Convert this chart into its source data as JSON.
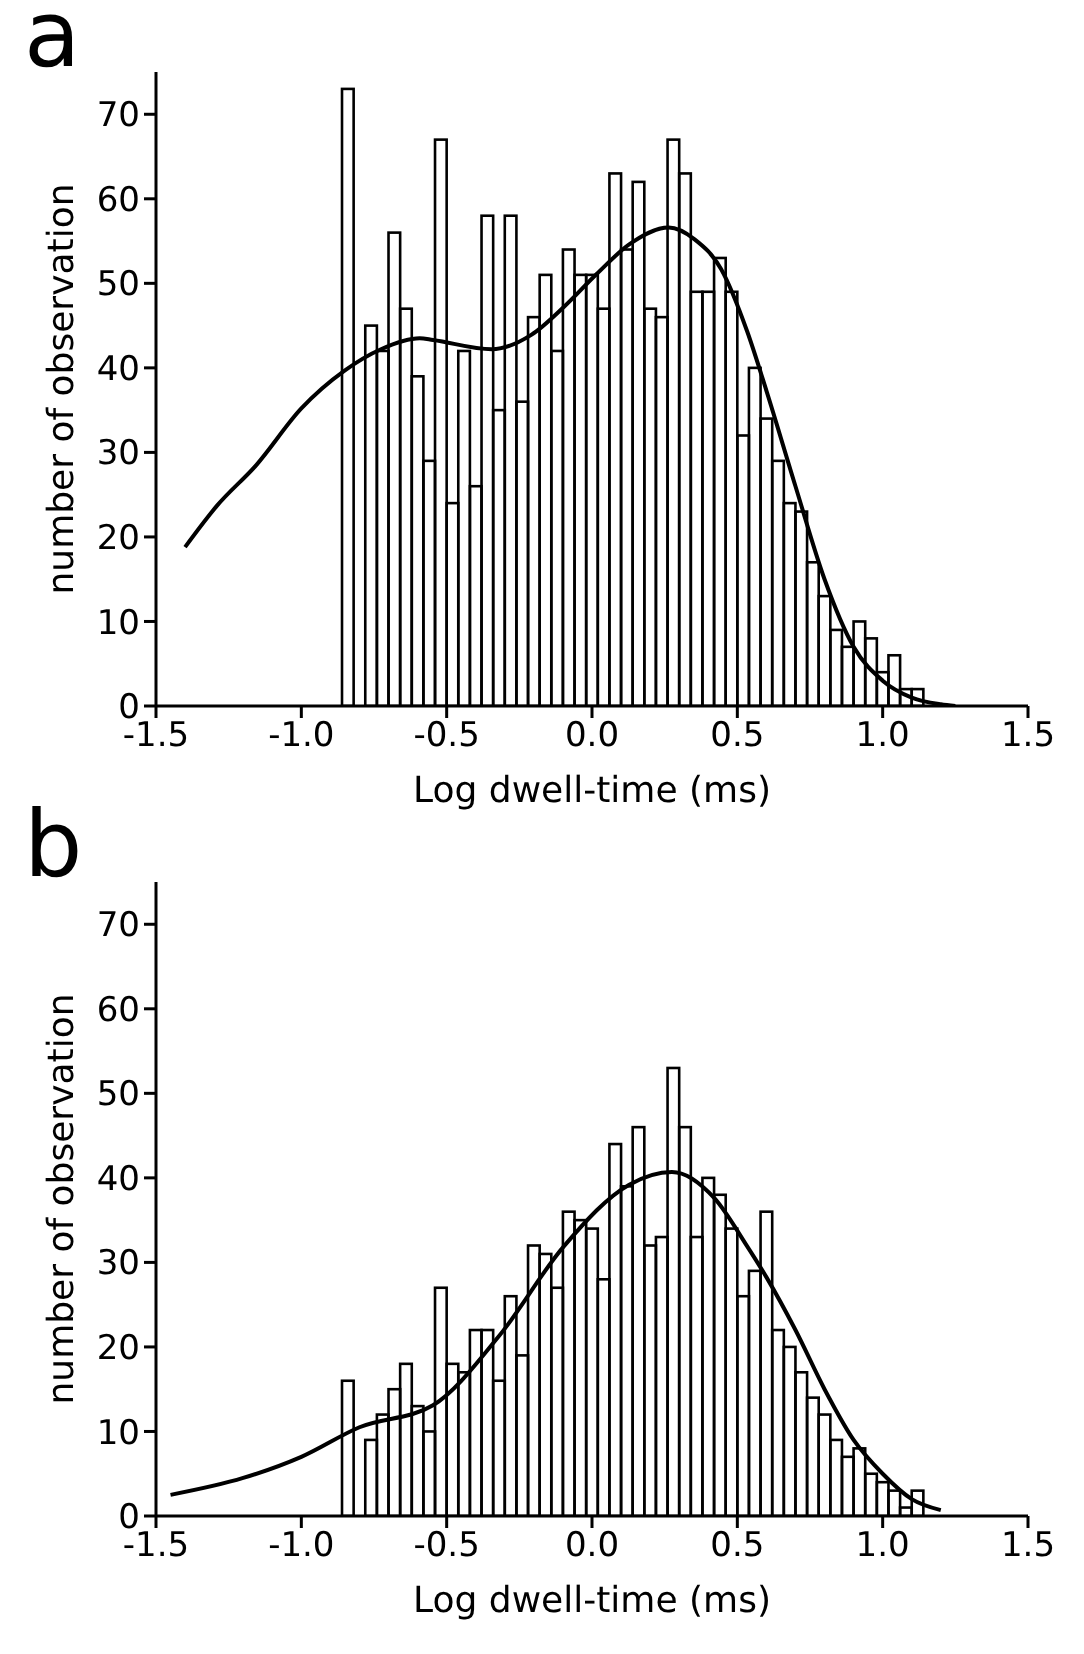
{
  "chart_data": [
    {
      "type": "histogram",
      "annotations": [
        "a"
      ],
      "xlabel": "Log dwell-time (ms)",
      "ylabel": "number of observation",
      "xlim": [
        -1.5,
        1.5
      ],
      "ylim": [
        0,
        75
      ],
      "xticks": [
        -1.5,
        {
          "value": -1,
          "label": "-1.0"
        },
        -0.5,
        {
          "value": 0,
          "label": "0.0"
        },
        0.5,
        {
          "value": 1,
          "label": "1.0"
        },
        1.5
      ],
      "yticks": [
        0,
        10,
        20,
        30,
        40,
        50,
        60,
        70
      ],
      "bins": [
        -0.86,
        -0.82,
        -0.78,
        -0.74,
        -0.7,
        -0.66,
        -0.62,
        -0.58,
        -0.54,
        -0.5,
        -0.46,
        -0.42,
        -0.38,
        -0.34,
        -0.3,
        -0.26,
        -0.22,
        -0.18,
        -0.14,
        -0.1,
        -0.06,
        -0.02,
        0.02,
        0.06,
        0.1,
        0.14,
        0.18,
        0.22,
        0.26,
        0.3,
        0.34,
        0.38,
        0.42,
        0.46,
        0.5,
        0.54,
        0.58,
        0.62,
        0.66,
        0.7,
        0.74,
        0.78,
        0.82,
        0.86,
        0.9,
        0.94,
        0.98,
        1.02,
        1.06,
        1.1,
        1.14
      ],
      "series": [
        {
          "color": "#000000",
          "values": [
            73,
            0,
            45,
            42,
            56,
            47,
            39,
            29,
            67,
            24,
            42,
            26,
            58,
            35,
            58,
            36,
            46,
            51,
            42,
            54,
            51,
            51,
            47,
            63,
            54,
            62,
            47,
            46,
            67,
            63,
            49,
            49,
            53,
            49,
            32,
            40,
            34,
            29,
            24,
            23,
            17,
            13,
            9,
            7,
            10,
            8,
            4,
            6,
            2,
            2
          ]
        },
        {
          "type": "line",
          "color": "#000000",
          "x": [
            -1.4,
            -1.29,
            -1.155,
            -1.0,
            -0.85,
            -0.726,
            -0.593,
            -0.547,
            -0.345,
            -0.209,
            -0.097,
            0.016,
            0.128,
            0.264,
            0.353,
            0.444,
            0.534,
            0.601,
            0.7,
            0.8,
            0.9,
            1.0,
            1.1,
            1.2,
            1.25
          ],
          "values": [
            18.8,
            23.7,
            28.5,
            35.2,
            39.7,
            42.2,
            43.5,
            43.3,
            42.2,
            43.9,
            47.2,
            51.1,
            54.6,
            56.6,
            55.2,
            51.7,
            44.3,
            37.2,
            26,
            15,
            7,
            3,
            1,
            0.2,
            0
          ]
        }
      ]
    },
    {
      "type": "histogram",
      "annotations": [
        "b"
      ],
      "xlabel": "Log dwell-time (ms)",
      "ylabel": "number of observation",
      "xlim": [
        -1.5,
        1.5
      ],
      "ylim": [
        0,
        75
      ],
      "xticks": [
        -1.5,
        {
          "value": -1,
          "label": "-1.0"
        },
        -0.5,
        {
          "value": 0,
          "label": "0.0"
        },
        0.5,
        {
          "value": 1,
          "label": "1.0"
        },
        1.5
      ],
      "yticks": [
        0,
        10,
        20,
        30,
        40,
        50,
        60,
        70
      ],
      "bins": [
        -0.86,
        -0.82,
        -0.78,
        -0.74,
        -0.7,
        -0.66,
        -0.62,
        -0.58,
        -0.54,
        -0.5,
        -0.46,
        -0.42,
        -0.38,
        -0.34,
        -0.3,
        -0.26,
        -0.22,
        -0.18,
        -0.14,
        -0.1,
        -0.06,
        -0.02,
        0.02,
        0.06,
        0.1,
        0.14,
        0.18,
        0.22,
        0.26,
        0.3,
        0.34,
        0.38,
        0.42,
        0.46,
        0.5,
        0.54,
        0.58,
        0.62,
        0.66,
        0.7,
        0.74,
        0.78,
        0.82,
        0.86,
        0.9,
        0.94,
        0.98,
        1.02,
        1.06,
        1.1,
        1.14
      ],
      "series": [
        {
          "color": "#000000",
          "values": [
            16,
            0,
            9,
            12,
            15,
            18,
            13,
            10,
            27,
            18,
            17,
            22,
            22,
            16,
            26,
            19,
            32,
            31,
            27,
            36,
            35,
            34,
            28,
            44,
            39,
            46,
            32,
            33,
            53,
            46,
            33,
            40,
            38,
            34,
            26,
            29,
            36,
            22,
            20,
            17,
            14,
            12,
            9,
            7,
            8,
            5,
            4,
            3,
            1,
            3
          ]
        },
        {
          "type": "line",
          "color": "#000000",
          "x": [
            -1.45,
            -1.2,
            -1.0,
            -0.8,
            -0.547,
            -0.322,
            -0.097,
            0.128,
            0.275,
            0.421,
            0.534,
            0.601,
            0.7,
            0.8,
            0.9,
            1.0,
            1.1,
            1.2
          ],
          "values": [
            2.5,
            4.5,
            7,
            10.5,
            13.1,
            21.2,
            31.9,
            39.2,
            40.7,
            37.6,
            31.9,
            28.2,
            22,
            15,
            9,
            5,
            2,
            0.7
          ]
        }
      ]
    }
  ]
}
